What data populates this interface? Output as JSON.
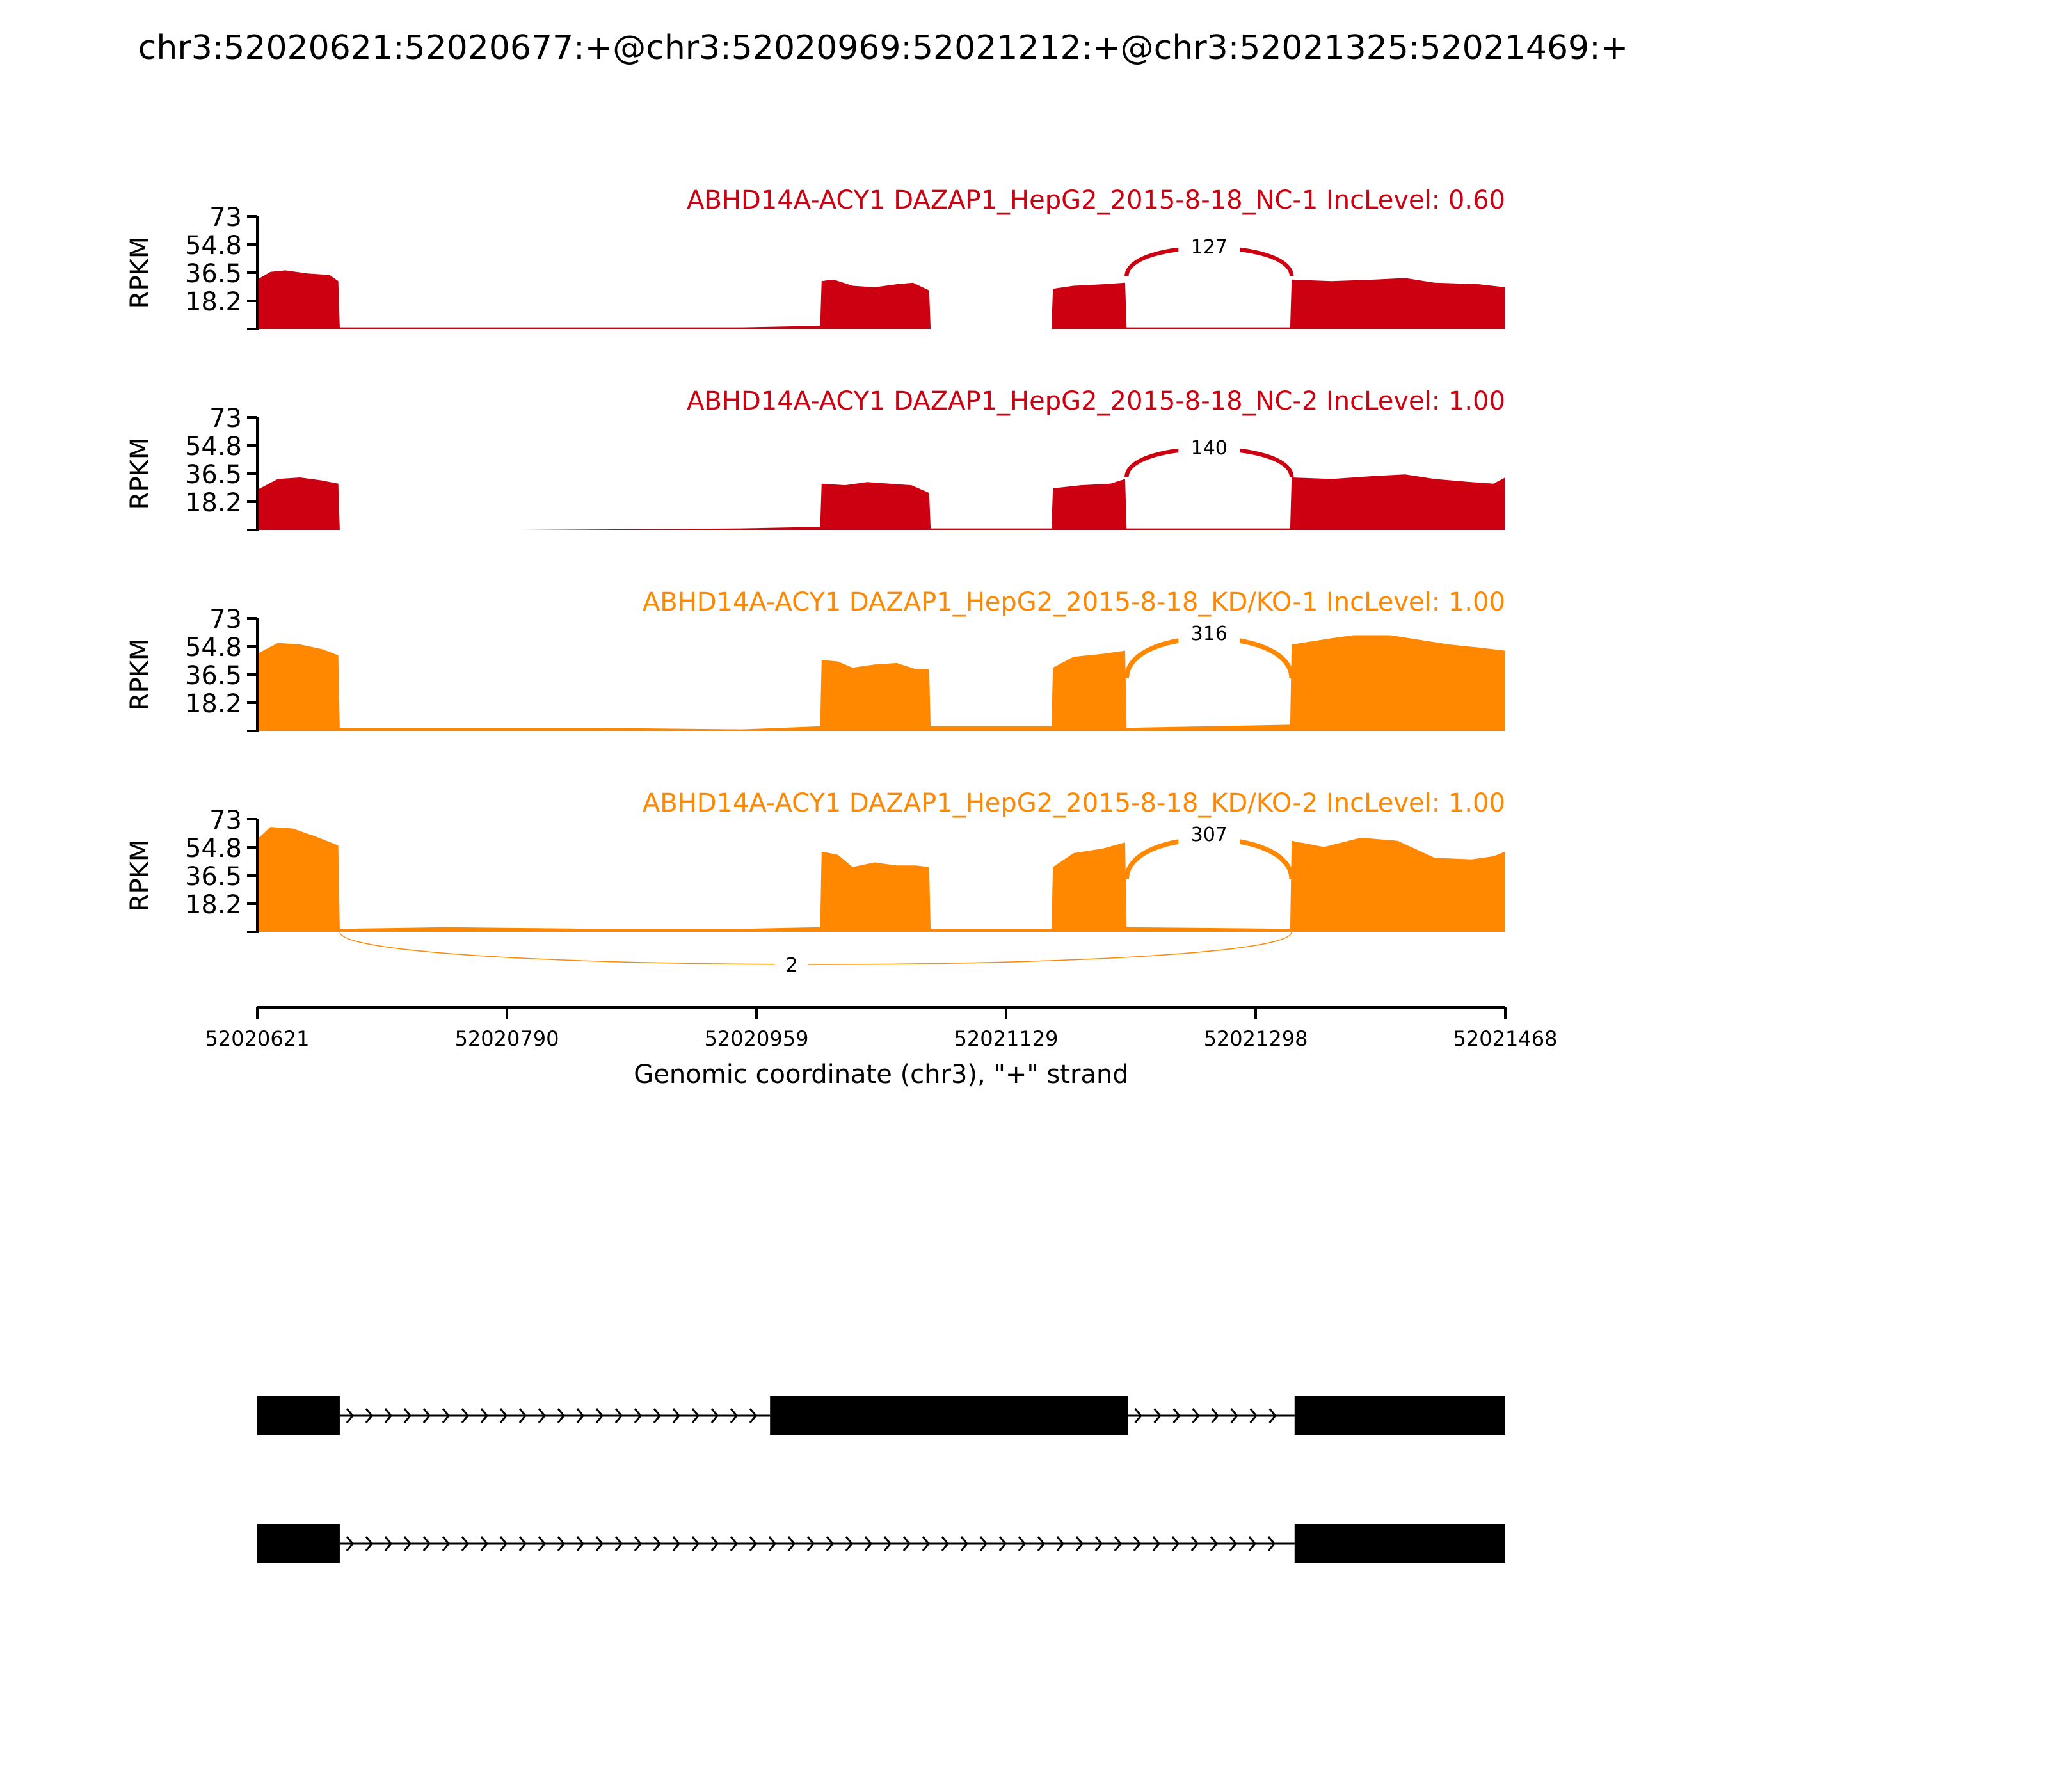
{
  "figure": {
    "title": "chr3:52020621:52020677:+@chr3:52020969:52021212:+@chr3:52021325:52021469:+"
  },
  "colors": {
    "nc": "#cc0010",
    "kd": "#ff8800",
    "axis": "#000000",
    "gene": "#000000"
  },
  "chart_data": {
    "type": "area",
    "subtype": "sashimi",
    "x_range": [
      52020621,
      52021468
    ],
    "y_range": [
      0,
      73
    ],
    "y_ticks": [
      "73",
      "54.8",
      "36.5",
      "18.2"
    ],
    "ylabel": "RPKM",
    "x_ticks": [
      "52020621",
      "52020790",
      "52020959",
      "52021129",
      "52021298",
      "52021468"
    ],
    "xlabel": "Genomic coordinate (chr3), \"+\" strand",
    "tracks": [
      {
        "label": "ABHD14A-ACY1 DAZAP1_HepG2_2015-8-18_NC-1 IncLevel: 0.60",
        "color_key": "nc",
        "profile": [
          [
            52020621,
            32
          ],
          [
            52020630,
            37
          ],
          [
            52020640,
            38
          ],
          [
            52020655,
            36
          ],
          [
            52020670,
            35
          ],
          [
            52020676,
            31
          ],
          [
            52020677,
            1
          ],
          [
            52020750,
            1
          ],
          [
            52020850,
            1
          ],
          [
            52020950,
            1
          ],
          [
            52021003,
            2
          ],
          [
            52021004,
            31
          ],
          [
            52021012,
            32
          ],
          [
            52021025,
            28
          ],
          [
            52021040,
            27
          ],
          [
            52021055,
            29
          ],
          [
            52021066,
            30
          ],
          [
            52021077,
            25
          ],
          [
            52021078,
            0
          ],
          [
            52021160,
            0
          ],
          [
            52021161,
            26
          ],
          [
            52021175,
            28
          ],
          [
            52021195,
            29
          ],
          [
            52021210,
            30
          ],
          [
            52021211,
            1
          ],
          [
            52021322,
            1
          ],
          [
            52021323,
            32
          ],
          [
            52021350,
            31
          ],
          [
            52021380,
            32
          ],
          [
            52021400,
            33
          ],
          [
            52021420,
            30
          ],
          [
            52021450,
            29
          ],
          [
            52021468,
            27
          ]
        ],
        "junctions": [
          {
            "from": 52021211,
            "to": 52021323,
            "count": "127",
            "side": "above"
          }
        ]
      },
      {
        "label": "ABHD14A-ACY1 DAZAP1_HepG2_2015-8-18_NC-2 IncLevel: 1.00",
        "color_key": "nc",
        "profile": [
          [
            52020621,
            26
          ],
          [
            52020635,
            33
          ],
          [
            52020650,
            34
          ],
          [
            52020665,
            32
          ],
          [
            52020676,
            30
          ],
          [
            52020677,
            0
          ],
          [
            52020800,
            0
          ],
          [
            52020950,
            1
          ],
          [
            52021003,
            2
          ],
          [
            52021004,
            30
          ],
          [
            52021020,
            29
          ],
          [
            52021035,
            31
          ],
          [
            52021050,
            30
          ],
          [
            52021065,
            29
          ],
          [
            52021077,
            24
          ],
          [
            52021078,
            1
          ],
          [
            52021160,
            1
          ],
          [
            52021161,
            27
          ],
          [
            52021180,
            29
          ],
          [
            52021200,
            30
          ],
          [
            52021210,
            33
          ],
          [
            52021211,
            1
          ],
          [
            52021322,
            1
          ],
          [
            52021323,
            34
          ],
          [
            52021350,
            33
          ],
          [
            52021380,
            35
          ],
          [
            52021400,
            36
          ],
          [
            52021420,
            33
          ],
          [
            52021445,
            31
          ],
          [
            52021460,
            30
          ],
          [
            52021468,
            34
          ]
        ],
        "junctions": [
          {
            "from": 52021211,
            "to": 52021323,
            "count": "140",
            "side": "above"
          }
        ]
      },
      {
        "label": "ABHD14A-ACY1 DAZAP1_HepG2_2015-8-18_KD/KO-1 IncLevel: 1.00",
        "color_key": "kd",
        "profile": [
          [
            52020621,
            50
          ],
          [
            52020635,
            57
          ],
          [
            52020650,
            56
          ],
          [
            52020665,
            53
          ],
          [
            52020676,
            49
          ],
          [
            52020677,
            2
          ],
          [
            52020750,
            2
          ],
          [
            52020850,
            2
          ],
          [
            52020950,
            1
          ],
          [
            52021003,
            3
          ],
          [
            52021004,
            46
          ],
          [
            52021015,
            45
          ],
          [
            52021025,
            41
          ],
          [
            52021040,
            43
          ],
          [
            52021055,
            44
          ],
          [
            52021068,
            40
          ],
          [
            52021077,
            40
          ],
          [
            52021078,
            3
          ],
          [
            52021160,
            3
          ],
          [
            52021161,
            41
          ],
          [
            52021175,
            48
          ],
          [
            52021195,
            50
          ],
          [
            52021210,
            52
          ],
          [
            52021211,
            2
          ],
          [
            52021322,
            4
          ],
          [
            52021323,
            56
          ],
          [
            52021350,
            60
          ],
          [
            52021365,
            62
          ],
          [
            52021390,
            62
          ],
          [
            52021410,
            59
          ],
          [
            52021430,
            56
          ],
          [
            52021450,
            54
          ],
          [
            52021468,
            52
          ]
        ],
        "junctions": [
          {
            "from": 52021211,
            "to": 52021323,
            "count": "316",
            "side": "above"
          }
        ]
      },
      {
        "label": "ABHD14A-ACY1 DAZAP1_HepG2_2015-8-18_KD/KO-2 IncLevel: 1.00",
        "color_key": "kd",
        "profile": [
          [
            52020621,
            60
          ],
          [
            52020630,
            68
          ],
          [
            52020645,
            67
          ],
          [
            52020660,
            62
          ],
          [
            52020676,
            56
          ],
          [
            52020677,
            2
          ],
          [
            52020750,
            3
          ],
          [
            52020850,
            2
          ],
          [
            52020950,
            2
          ],
          [
            52021003,
            3
          ],
          [
            52021004,
            52
          ],
          [
            52021015,
            50
          ],
          [
            52021025,
            42
          ],
          [
            52021040,
            45
          ],
          [
            52021055,
            43
          ],
          [
            52021068,
            43
          ],
          [
            52021077,
            42
          ],
          [
            52021078,
            2
          ],
          [
            52021160,
            2
          ],
          [
            52021161,
            42
          ],
          [
            52021175,
            51
          ],
          [
            52021195,
            54
          ],
          [
            52021210,
            58
          ],
          [
            52021211,
            3
          ],
          [
            52021322,
            2
          ],
          [
            52021323,
            59
          ],
          [
            52021345,
            55
          ],
          [
            52021370,
            61
          ],
          [
            52021395,
            59
          ],
          [
            52021420,
            48
          ],
          [
            52021445,
            47
          ],
          [
            52021460,
            49
          ],
          [
            52021468,
            52
          ]
        ],
        "junctions": [
          {
            "from": 52021211,
            "to": 52021323,
            "count": "307",
            "side": "above"
          },
          {
            "from": 52020677,
            "to": 52021323,
            "count": "2",
            "side": "below"
          }
        ]
      }
    ],
    "isoforms": [
      {
        "exons": [
          [
            52020621,
            52020677
          ],
          [
            52020969,
            52021212
          ],
          [
            52021325,
            52021468
          ]
        ]
      },
      {
        "exons": [
          [
            52020621,
            52020677
          ],
          [
            52021325,
            52021468
          ]
        ]
      }
    ]
  }
}
